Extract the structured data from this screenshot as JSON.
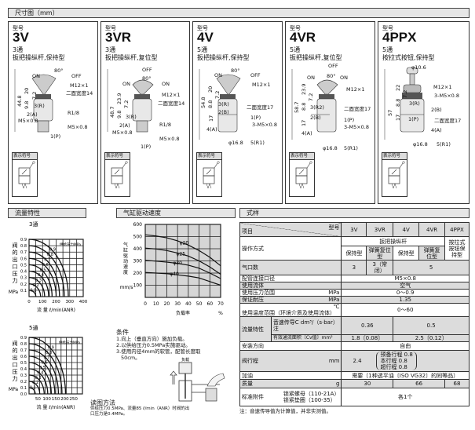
{
  "dim_header": "尺寸图（mm）",
  "panels": [
    {
      "tag": "型号",
      "model": "3V",
      "ports": "3通",
      "desc": "扳把操纵杆,保持型",
      "labels": [
        "ON",
        "80°",
        "OFF",
        "M12×1",
        "二面宽度14",
        "44.8",
        "20",
        "7.2",
        "9.8",
        "3(R)",
        "2(A)",
        "M5×0.8",
        "R1/8",
        "M5×0.8",
        "1(P)"
      ],
      "symbol_title": "表示符号"
    },
    {
      "tag": "型号",
      "model": "3VR",
      "ports": "3通",
      "desc": "扳把操纵杆,复位型",
      "labels": [
        "OFF",
        "ON",
        "80°",
        "ON",
        "M12×1",
        "二面宽度14",
        "48.7",
        "23.9",
        "7.2",
        "9.8",
        "3(R)",
        "2(A)",
        "M5×0.8",
        "R1/8",
        "M5×0.8",
        "1(P)"
      ],
      "symbol_title": "表示符号"
    },
    {
      "tag": "型号",
      "model": "4V",
      "ports": "5通",
      "desc": "扳把操纵杆,保持型",
      "labels": [
        "ON",
        "80°",
        "OFF",
        "M12×1",
        "54.8",
        "20",
        "7.2",
        "8.8",
        "3(R)",
        "2(B)",
        "17",
        "二面宽度17",
        "1(P)",
        "3-M5×0.8",
        "4(A)",
        "φ16.8",
        "5(R1)"
      ],
      "symbol_title": "表示符号"
    },
    {
      "tag": "型号",
      "model": "4VR",
      "ports": "5通",
      "desc": "扳把操纵杆,复位型",
      "labels": [
        "OFF",
        "ON",
        "80°",
        "ON",
        "M12×1",
        "58.7",
        "23.9",
        "7.2",
        "8.8",
        "3(R2)",
        "2(B)",
        "17",
        "二面宽度17",
        "1(P)",
        "3-M5×0.8",
        "4(A)",
        "φ16.8",
        "5(R1)"
      ],
      "symbol_title": "表示符号"
    },
    {
      "tag": "型号",
      "model": "4PPX",
      "ports": "5通",
      "desc": "按拉式按钮,保持型",
      "labels": [
        "φ10.6",
        "M12×1",
        "22",
        "7.2",
        "3-M5×0.8",
        "57",
        "8.8",
        "3(R)",
        "2(B)",
        "17",
        "二面宽度17",
        "1(P)",
        "4(A)",
        "φ16.8",
        "5(R1)"
      ],
      "symbol_title": "表示符号"
    }
  ],
  "flow": {
    "header": "流量特性",
    "ylabel": "阀的出口压力",
    "yunit": "MPa",
    "xlabel": "流 量 ℓ/min(ANR)",
    "legend": "供给压力MPa",
    "read_title": "读图方法",
    "read_text": "供给压力0.5MPa、流量85 ℓ/min（ANR）时阀的出口压力是0.4MPa。"
  },
  "chart_data": [
    {
      "type": "line",
      "title": "3通",
      "xlabel": "流 量 ℓ/min(ANR)",
      "ylabel": "阀的出口压力 MPa",
      "xlim": [
        0,
        400
      ],
      "ylim": [
        0,
        0.9
      ],
      "xticks": [
        "0",
        "100",
        "200",
        "300",
        "400"
      ],
      "yticks": [
        "0.1",
        "0.2",
        "0.3",
        "0.4",
        "0.5",
        "0.6",
        "0.7",
        "0.8",
        "0.9"
      ],
      "grid": true,
      "legend": "供给压力MPa",
      "supply_pressures": [
        0.1,
        0.2,
        0.3,
        0.4,
        0.5,
        0.6,
        0.7,
        0.8,
        0.9
      ],
      "max_flow": [
        50,
        85,
        115,
        145,
        170,
        200,
        225,
        260,
        290
      ]
    },
    {
      "type": "line",
      "title": "5通",
      "xlabel": "流 量 ℓ/min(ANR)",
      "ylabel": "阀的出口压力 MPa",
      "xlim": [
        0,
        300
      ],
      "ylim": [
        0,
        0.9
      ],
      "xticks": [
        "50",
        "100",
        "150",
        "200",
        "250"
      ],
      "yticks": [
        "0.0",
        "0.1",
        "0.2",
        "0.3",
        "0.4",
        "0.5",
        "0.6",
        "0.7",
        "0.8",
        "0.9"
      ],
      "grid": true,
      "legend": "供给压力MPa",
      "supply_pressures": [
        0.1,
        0.2,
        0.3,
        0.4,
        0.5,
        0.6,
        0.7,
        0.8,
        0.9
      ],
      "max_flow": [
        35,
        60,
        85,
        105,
        125,
        145,
        165,
        185,
        205
      ]
    },
    {
      "type": "line",
      "title": "气缸驱动速度",
      "xlabel": "负载率",
      "xunit": "%",
      "ylabel": "气缸驱动速度",
      "yunit": "mm/s",
      "xlim": [
        0,
        70
      ],
      "ylim": [
        0,
        600
      ],
      "xticks": [
        "0",
        "10",
        "20",
        "30",
        "40",
        "50",
        "60",
        "70"
      ],
      "yticks": [
        "100",
        "200",
        "300",
        "400",
        "500",
        "600"
      ],
      "grid": true,
      "series": [
        {
          "name": "φ20",
          "x": [
            0,
            10,
            20,
            30,
            40,
            50,
            60,
            70
          ],
          "y": [
            515,
            505,
            490,
            465,
            430,
            385,
            330,
            260
          ]
        },
        {
          "name": "φ25",
          "x": [
            0,
            10,
            20,
            30,
            40,
            50,
            60,
            70
          ],
          "y": [
            405,
            398,
            385,
            365,
            340,
            300,
            250,
            190
          ]
        },
        {
          "name": "φ30",
          "x": [
            0,
            10,
            20,
            30,
            40,
            50,
            60,
            70
          ],
          "y": [
            305,
            298,
            290,
            280,
            265,
            240,
            200,
            155
          ]
        },
        {
          "name": "φ40",
          "x": [
            0,
            10,
            20,
            30,
            40,
            50,
            60,
            70
          ],
          "y": [
            205,
            200,
            195,
            185,
            175,
            160,
            130,
            100
          ]
        }
      ]
    }
  ],
  "speed": {
    "header": "气缸驱动速度",
    "cond_title": "条件",
    "conds": [
      "1.向上（垂直方向）施加负载。",
      "2.以供给压力0.5MPa实施驱动。",
      "3.使用内径4mm的软管，配管长度取",
      "50cm。"
    ],
    "load_label": "负载"
  },
  "spec": {
    "header": "式样",
    "item": "项目",
    "model": "型号",
    "models": [
      "3V",
      "3VR",
      "4V",
      "4VR",
      "4PPX"
    ],
    "op": {
      "label": "操作方式",
      "lever": "扳把操纵杆",
      "push": "按拉式按钮保持型",
      "hold": "保持型",
      "spring": "弹簧复位型"
    },
    "ports": {
      "label": "气口数",
      "v1": "3",
      "v2": "3（常闭）",
      "v3": "5"
    },
    "pipe": {
      "label": "配管连接口径",
      "v": "M5×0.8"
    },
    "fluid": {
      "label": "使用流体",
      "v": "空气"
    },
    "pressure": {
      "label": "使用压力范围",
      "unit": "MPa",
      "v": "0～0.9"
    },
    "proof": {
      "label": "保证耐压",
      "unit": "MPa",
      "v": "1.35"
    },
    "temp": {
      "label": "使用温度范围（环境介质及使用流体）",
      "unit": "℃",
      "v": "0～60"
    },
    "flowc": {
      "label": "流量特性",
      "c_label": "音速传导C dm³/（s·bar）注",
      "c1": "0.36",
      "c2": "0.5",
      "cv_label": "有效通流面积〔Cv值〕mm²",
      "cv1": "1.8〔0.08〕",
      "cv2": "2.5〔0.12〕"
    },
    "mount": {
      "label": "安装方向",
      "v": "自由"
    },
    "stroke": {
      "label": "阀行程",
      "unit": "mm",
      "v": "2.4",
      "pre": "预备行程 0.8",
      "main": "本行程 0.8",
      "over": "超行程 0.8"
    },
    "oil": {
      "label": "加油",
      "v": "需要〔1种透平油〔ISO VG32〕的同等品〕"
    },
    "mass": {
      "label": "质量",
      "unit": "g",
      "v1": "30",
      "v2": "66",
      "v3": "68"
    },
    "acc": {
      "label": "标准附件",
      "a1": "锁紧螺母（110-21A）",
      "a2": "锁紧垫圈（100-35）",
      "v": "各1个"
    },
    "note": "注：音速传导值为计算值，并非实测值。"
  }
}
